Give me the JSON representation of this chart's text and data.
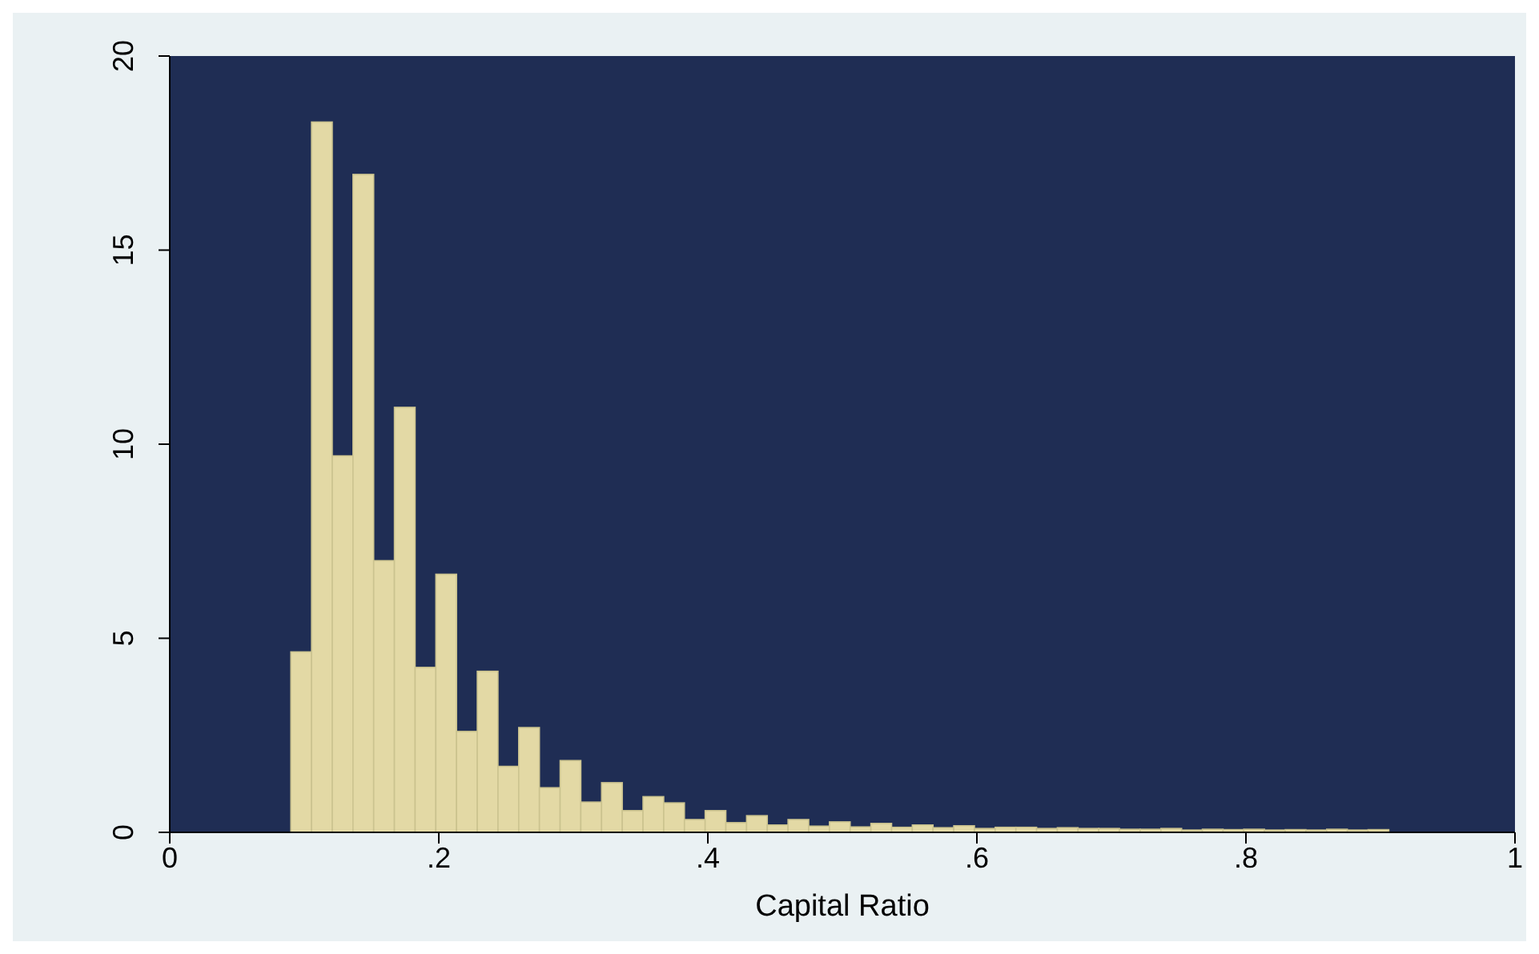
{
  "chart_data": {
    "type": "histogram",
    "xlabel": "Capital Ratio",
    "color": "#e3d9a5",
    "bins": [
      0.09,
      0.1054,
      0.1208,
      0.1362,
      0.1516,
      0.167,
      0.1824,
      0.1978,
      0.2132,
      0.2286,
      0.244,
      0.2594,
      0.2748,
      0.2902,
      0.3056,
      0.321,
      0.3364,
      0.3518,
      0.3672,
      0.3826,
      0.398,
      0.4134,
      0.4288,
      0.4442,
      0.4596,
      0.475,
      0.4904,
      0.5058,
      0.5212,
      0.5366,
      0.552,
      0.5674,
      0.5828,
      0.5982,
      0.6136,
      0.629,
      0.6444,
      0.6598,
      0.6752,
      0.6906,
      0.706,
      0.7214,
      0.7368,
      0.7522,
      0.7676,
      0.783,
      0.7984,
      0.8138,
      0.8292,
      0.8446,
      0.86,
      0.8754,
      0.8908,
      0.9062
    ],
    "values": [
      4.65,
      18.3,
      9.7,
      16.95,
      7.0,
      10.95,
      4.25,
      6.65,
      2.6,
      4.15,
      1.7,
      2.7,
      1.15,
      1.85,
      0.78,
      1.28,
      0.56,
      0.92,
      0.76,
      0.33,
      0.56,
      0.25,
      0.43,
      0.19,
      0.33,
      0.16,
      0.27,
      0.14,
      0.23,
      0.13,
      0.19,
      0.12,
      0.17,
      0.1,
      0.13,
      0.13,
      0.1,
      0.12,
      0.1,
      0.1,
      0.08,
      0.08,
      0.1,
      0.06,
      0.08,
      0.07,
      0.08,
      0.06,
      0.07,
      0.06,
      0.08,
      0.06,
      0.07
    ],
    "xlim": [
      0,
      1
    ],
    "xticks": [
      {
        "value": 0,
        "label": "0"
      },
      {
        "value": 0.2,
        "label": ".2"
      },
      {
        "value": 0.4,
        "label": ".4"
      },
      {
        "value": 0.6,
        "label": ".6"
      },
      {
        "value": 0.8,
        "label": ".8"
      },
      {
        "value": 1,
        "label": "1"
      }
    ],
    "ylim": [
      0,
      20
    ],
    "yticks": [
      0,
      5,
      10,
      15,
      20
    ]
  }
}
